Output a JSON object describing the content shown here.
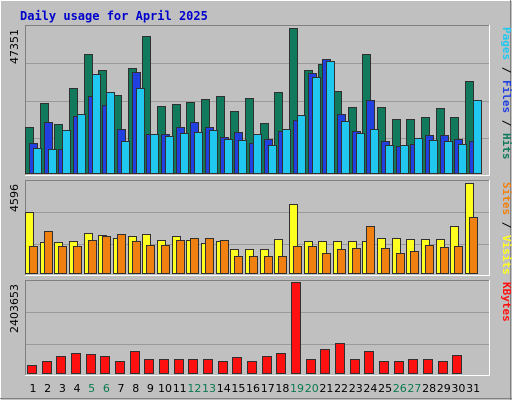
{
  "colors": {
    "background": "#c0c0c0",
    "frame_dark": "#808080",
    "frame_light": "#ffffff",
    "title": "#0000cc",
    "hits": "#127a5c",
    "files": "#2040e0",
    "pages": "#20c8f0",
    "visits": "#ffff20",
    "sites": "#f08010",
    "kbytes": "#ff1010",
    "weekend_label": "#0a7a50",
    "weekday_label": "#000000"
  },
  "chart_data": {
    "type": "bar",
    "title": "Daily usage for April 2025",
    "days": [
      "1",
      "2",
      "3",
      "4",
      "5",
      "6",
      "7",
      "8",
      "9",
      "10",
      "11",
      "12",
      "13",
      "14",
      "15",
      "16",
      "17",
      "18",
      "19",
      "20",
      "21",
      "22",
      "23",
      "24",
      "25",
      "26",
      "27",
      "28",
      "29",
      "30",
      "31"
    ],
    "weekend_days": [
      5,
      6,
      12,
      13,
      19,
      20,
      26,
      27
    ],
    "panels": [
      {
        "id": "usage",
        "max_label": "47351",
        "max": 47351,
        "side_labels": [
          {
            "text": "Pages",
            "color": "#20c8f0"
          },
          {
            "text": " / ",
            "color": "#000000"
          },
          {
            "text": "Files",
            "color": "#2040e0"
          },
          {
            "text": " / ",
            "color": "#000000"
          },
          {
            "text": "Hits",
            "color": "#127a5c"
          }
        ],
        "series": [
          {
            "name": "Hits",
            "key": "hits",
            "values": [
              15100,
              22900,
              16000,
              27700,
              38700,
              33500,
              25500,
              34000,
              44400,
              21900,
              22400,
              23200,
              24300,
              25200,
              20300,
              24600,
              16400,
              26500,
              47100,
              33600,
              35500,
              26700,
              21700,
              38700,
              21600,
              17700,
              17700,
              18400,
              21300,
              18500,
              29800
            ]
          },
          {
            "name": "Files",
            "key": "files",
            "values": [
              10000,
              16900,
              8200,
              18800,
              25100,
              22200,
              14600,
              32800,
              12800,
              12800,
              15300,
              16900,
              15300,
              12000,
              13500,
              9900,
              11300,
              14000,
              17300,
              32500,
              37000,
              19300,
              14000,
              23700,
              10600,
              9000,
              9800,
              12700,
              12600,
              11300,
              10700
            ]
          },
          {
            "name": "Pages",
            "key": "pages",
            "values": [
              8500,
              8200,
              14200,
              19300,
              32300,
              26500,
              10500,
              27700,
              12800,
              12100,
              13300,
              13600,
              14200,
              11300,
              11000,
              13000,
              9200,
              14500,
              18900,
              31300,
              36500,
              17000,
              13100,
              14500,
              9200,
              9200,
              11600,
              11000,
              10600,
              9700,
              23800
            ]
          }
        ]
      },
      {
        "id": "visits",
        "max_label": "4596",
        "max": 4596,
        "side_labels": [
          {
            "text": "Sites",
            "color": "#f08010"
          },
          {
            "text": " / ",
            "color": "#000000"
          },
          {
            "text": "Visits",
            "color": "#ffff20"
          }
        ],
        "series": [
          {
            "name": "Visits",
            "key": "visits",
            "values": [
              3100,
              1600,
              1600,
              1650,
              2050,
              1950,
              1800,
              1900,
              2000,
              1700,
              1900,
              1700,
              1550,
              1650,
              1250,
              1250,
              1250,
              1750,
              3500,
              1650,
              1650,
              1650,
              1650,
              1650,
              1800,
              1800,
              1750,
              1750,
              1750,
              2400,
              4550
            ]
          },
          {
            "name": "Sites",
            "key": "sites",
            "values": [
              1400,
              2150,
              1400,
              1400,
              1700,
              1900,
              2000,
              1650,
              1450,
              1450,
              1700,
              1800,
              1800,
              1700,
              900,
              900,
              900,
              900,
              1400,
              1400,
              1050,
              1250,
              1300,
              2400,
              1300,
              1050,
              1150,
              1450,
              1350,
              1400,
              2850
            ]
          }
        ]
      },
      {
        "id": "kbytes",
        "max_label": "2403653",
        "max": 2403653,
        "side_labels": [
          {
            "text": "KBytes",
            "color": "#ff1010"
          }
        ],
        "series": [
          {
            "name": "KBytes",
            "key": "kbytes",
            "values": [
              230000,
              350000,
              480000,
              550000,
              530000,
              470000,
              350000,
              600000,
              400000,
              400000,
              400000,
              400000,
              400000,
              350000,
              450000,
              350000,
              480000,
              550000,
              2400000,
              400000,
              650000,
              820000,
              400000,
              600000,
              350000,
              350000,
              400000,
              400000,
              350000,
              500000,
              0
            ]
          }
        ]
      }
    ]
  }
}
